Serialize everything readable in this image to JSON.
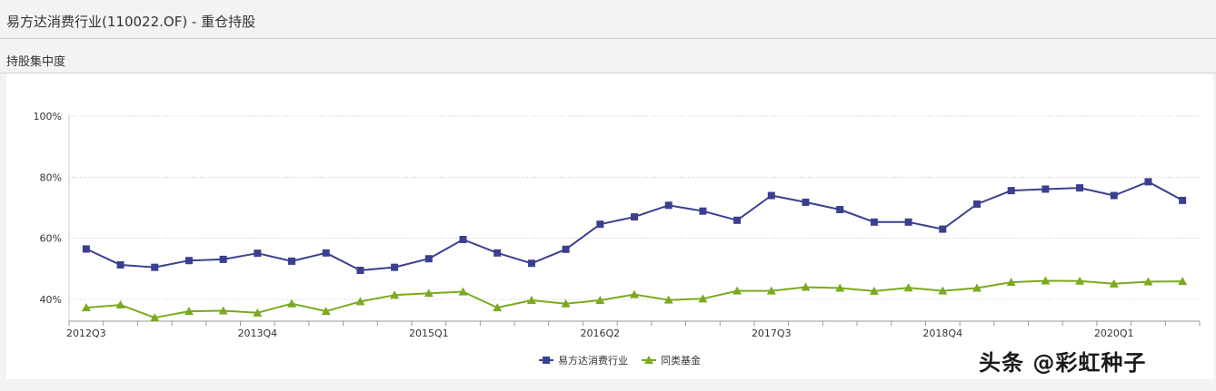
{
  "header": {
    "title": "易方达消费行业(110022.OF) - 重仓持股"
  },
  "section": {
    "title": "持股集中度"
  },
  "watermark": "头条 @彩虹种子",
  "colors": {
    "series1": "#3a3f8f",
    "series2": "#7aaa1e",
    "grid": "#c8c8c8",
    "axis": "#999999"
  },
  "chart_data": {
    "type": "line",
    "title": "",
    "xlabel": "",
    "ylabel": "",
    "ylim": [
      33,
      100
    ],
    "yticks": [
      "100%",
      "80%",
      "60%",
      "40%"
    ],
    "ytick_values": [
      100,
      80,
      60,
      40
    ],
    "grid": "horizontal dotted",
    "legend_position": "bottom-center",
    "categories": [
      "2012Q3",
      "2012Q4",
      "2013Q1",
      "2013Q2",
      "2013Q3",
      "2013Q4",
      "2014Q1",
      "2014Q2",
      "2014Q3",
      "2014Q4",
      "2015Q1",
      "2015Q2",
      "2015Q3",
      "2015Q4",
      "2016Q1",
      "2016Q2",
      "2016Q3",
      "2016Q4",
      "2017Q1",
      "2017Q2",
      "2017Q3",
      "2017Q4",
      "2018Q1",
      "2018Q2",
      "2018Q3",
      "2018Q4",
      "2019Q1",
      "2019Q2",
      "2019Q3",
      "2019Q4",
      "2020Q1",
      "2020Q2",
      "2020Q3"
    ],
    "x_tick_labels": [
      {
        "index": 0,
        "label": "2012Q3"
      },
      {
        "index": 5,
        "label": "2013Q4"
      },
      {
        "index": 10,
        "label": "2015Q1"
      },
      {
        "index": 15,
        "label": "2016Q2"
      },
      {
        "index": 20,
        "label": "2017Q3"
      },
      {
        "index": 25,
        "label": "2018Q4"
      },
      {
        "index": 30,
        "label": "2020Q1"
      }
    ],
    "series": [
      {
        "name": "易方达消费行业",
        "marker": "square",
        "values": [
          56.5,
          51.3,
          50.5,
          52.7,
          53.1,
          55.1,
          52.5,
          55.2,
          49.5,
          50.5,
          53.3,
          59.6,
          55.2,
          51.8,
          56.4,
          64.6,
          67.0,
          70.8,
          68.9,
          65.9,
          74.0,
          71.8,
          69.4,
          65.3,
          65.3,
          63.0,
          71.2,
          75.6,
          76.1,
          76.5,
          74.0,
          78.5,
          72.4
        ]
      },
      {
        "name": "同类基金",
        "marker": "triangle",
        "values": [
          37.3,
          38.2,
          34.0,
          36.1,
          36.3,
          35.6,
          38.6,
          36.1,
          39.3,
          41.4,
          42.0,
          42.5,
          37.3,
          39.7,
          38.6,
          39.7,
          41.6,
          39.8,
          40.2,
          42.8,
          42.8,
          44.0,
          43.7,
          42.7,
          43.8,
          42.8,
          43.7,
          45.6,
          46.1,
          46.0,
          45.1,
          45.8,
          45.9
        ]
      }
    ]
  }
}
